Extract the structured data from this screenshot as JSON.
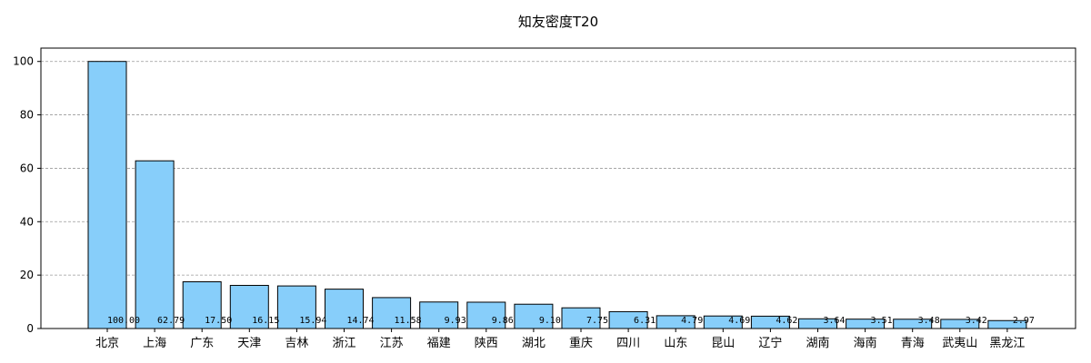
{
  "chart_data": {
    "type": "bar",
    "title": "知友密度T20",
    "xlabel": "",
    "ylabel": "",
    "ylim": [
      0,
      105
    ],
    "yticks": [
      0,
      20,
      40,
      60,
      80,
      100
    ],
    "grid": "y-dashed",
    "categories": [
      "北京",
      "上海",
      "广东",
      "天津",
      "吉林",
      "浙江",
      "江苏",
      "福建",
      "陕西",
      "湖北",
      "重庆",
      "四川",
      "山东",
      "昆山",
      "辽宁",
      "湖南",
      "海南",
      "青海",
      "武夷山",
      "黑龙江"
    ],
    "values": [
      100.0,
      62.79,
      17.5,
      16.15,
      15.94,
      14.74,
      11.58,
      9.93,
      9.86,
      9.1,
      7.75,
      6.31,
      4.79,
      4.69,
      4.62,
      3.64,
      3.51,
      3.48,
      3.42,
      2.97
    ],
    "data_labels": [
      "100.00",
      "62.79",
      "17.50",
      "16.15",
      "15.94",
      "14.74",
      "11.58",
      "9.93",
      "9.86",
      "9.10",
      "7.75",
      "6.31",
      "4.79",
      "4.69",
      "4.62",
      "3.64",
      "3.51",
      "3.48",
      "3.42",
      "2.97"
    ],
    "colors": {
      "bar_fill": "#87cefa",
      "bar_edge": "#000000",
      "grid": "#999999"
    }
  }
}
